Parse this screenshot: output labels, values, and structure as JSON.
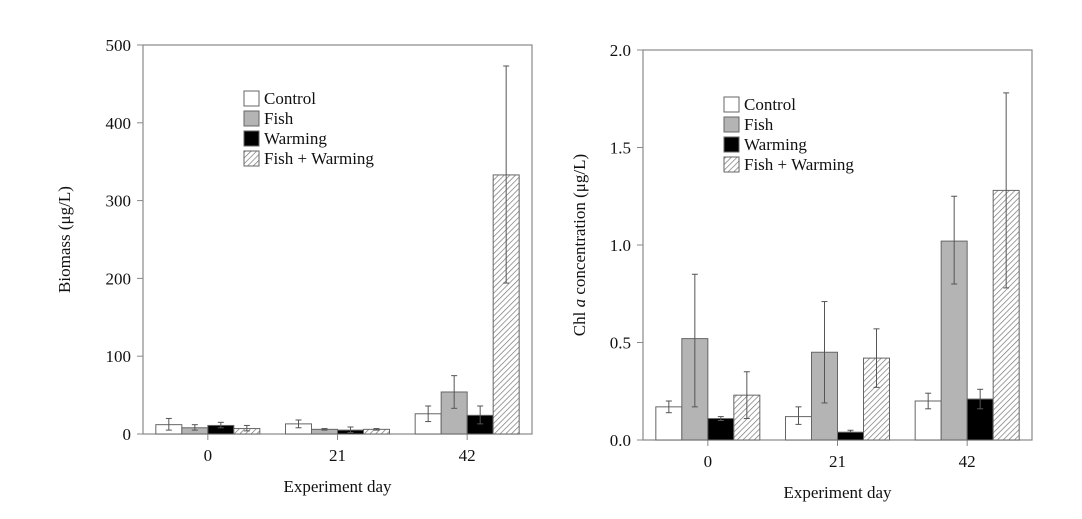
{
  "chart_data": [
    {
      "type": "bar",
      "xlabel": "Experiment day",
      "ylabel": "Biomass (μg/L)",
      "ylim": [
        0,
        500
      ],
      "yticks": [
        0,
        100,
        200,
        300,
        400,
        500
      ],
      "ytick_labels": [
        "0",
        "100",
        "200",
        "300",
        "400",
        "500"
      ],
      "categories": [
        "0",
        "21",
        "42"
      ],
      "legend": "top-center",
      "series": [
        {
          "name": "Control",
          "fill": "#ffffff",
          "values": [
            12,
            13,
            26
          ],
          "err_low": [
            5,
            8,
            16
          ],
          "err_high": [
            20,
            18,
            36
          ]
        },
        {
          "name": "Fish",
          "fill": "#b4b4b4",
          "values": [
            8,
            6,
            54
          ],
          "err_low": [
            5,
            5,
            33
          ],
          "err_high": [
            12,
            7,
            75
          ]
        },
        {
          "name": "Warming",
          "fill": "#000000",
          "values": [
            11,
            5,
            24
          ],
          "err_low": [
            8,
            2,
            13
          ],
          "err_high": [
            15,
            9,
            36
          ]
        },
        {
          "name": "Fish + Warming",
          "fill": "hatch",
          "values": [
            7,
            6,
            333
          ],
          "err_low": [
            4,
            5,
            194
          ],
          "err_high": [
            11,
            7,
            473
          ]
        }
      ]
    },
    {
      "type": "bar",
      "xlabel": "Experiment day",
      "ylabel_parts": [
        "Chl ",
        "a",
        " concentration (μg/L)"
      ],
      "ylim": [
        0,
        2.0
      ],
      "yticks": [
        0,
        0.5,
        1.0,
        1.5,
        2.0
      ],
      "ytick_labels": [
        "0.0",
        "0.5",
        "1.0",
        "1.5",
        "2.0"
      ],
      "categories": [
        "0",
        "21",
        "42"
      ],
      "legend": "top-center",
      "series": [
        {
          "name": "Control",
          "fill": "#ffffff",
          "values": [
            0.17,
            0.12,
            0.2
          ],
          "err_low": [
            0.14,
            0.08,
            0.16
          ],
          "err_high": [
            0.2,
            0.17,
            0.24
          ]
        },
        {
          "name": "Fish",
          "fill": "#b4b4b4",
          "values": [
            0.52,
            0.45,
            1.02
          ],
          "err_low": [
            0.17,
            0.19,
            0.8
          ],
          "err_high": [
            0.85,
            0.71,
            1.25
          ]
        },
        {
          "name": "Warming",
          "fill": "#000000",
          "values": [
            0.11,
            0.04,
            0.21
          ],
          "err_low": [
            0.1,
            0.04,
            0.16
          ],
          "err_high": [
            0.12,
            0.05,
            0.26
          ]
        },
        {
          "name": "Fish + Warming",
          "fill": "hatch",
          "values": [
            0.23,
            0.42,
            1.28
          ],
          "err_low": [
            0.11,
            0.27,
            0.78
          ],
          "err_high": [
            0.35,
            0.57,
            1.78
          ]
        }
      ]
    }
  ]
}
